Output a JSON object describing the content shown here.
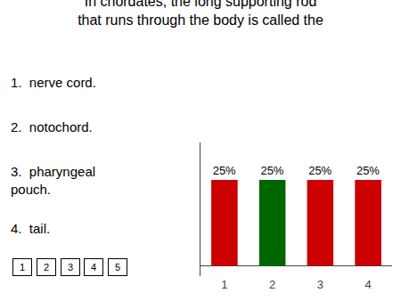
{
  "chart_data": {
    "type": "bar",
    "title": "In chordates, the long supporting rod\nthat runs through the body is called the",
    "categories": [
      "1",
      "2",
      "3",
      "4"
    ],
    "values": [
      25,
      25,
      25,
      25
    ],
    "value_labels": [
      "25%",
      "25%",
      "25%",
      "25%"
    ],
    "colors": [
      "#cc0000",
      "#006600",
      "#cc0000",
      "#cc0000"
    ],
    "data_labels": true,
    "ylim": [
      -3,
      36
    ],
    "yticks": [],
    "tick_labels": "x",
    "grid": false,
    "annotations": [
      [
        "1.  nerve cord.",
        "2.  notochord.",
        "3.  pharyngeal\npouch.",
        "4.  tail."
      ],
      [
        "1",
        "2",
        "3",
        "4",
        "5"
      ]
    ]
  }
}
